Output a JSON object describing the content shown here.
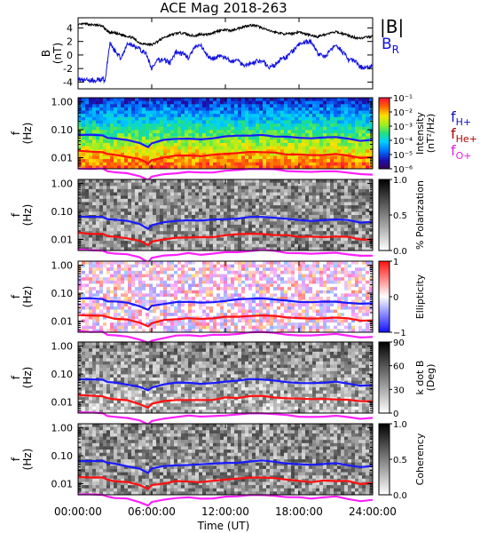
{
  "title": "ACE Mag 2018-263",
  "colors": {
    "b_total": "#000000",
    "b_r": "#1010e0",
    "f_h": "#1a1aff",
    "f_he": "#ff1010",
    "f_o": "#ff20ff",
    "label_h": "#1010c0",
    "label_he": "#b00000",
    "label_o": "#e020e0"
  },
  "x_axis": {
    "label": "Time (UT)",
    "ticks": [
      "00:00:00",
      "06:00:00",
      "12:00:00",
      "18:00:00",
      "24:00:00"
    ],
    "tick_hours": [
      0,
      6,
      12,
      18,
      24
    ],
    "range_hours": [
      0,
      24
    ]
  },
  "chart_data": [
    {
      "type": "line",
      "panel": "magnetic-field",
      "ylabel": "B",
      "yunit": "(nT)",
      "ylim": [
        -5,
        5.5
      ],
      "yticks": [
        "4",
        "2",
        "0",
        "-2",
        "-4"
      ],
      "ytick_values": [
        4,
        2,
        0,
        -2,
        -4
      ],
      "x_hours": [
        0,
        0.5,
        1,
        1.5,
        2,
        2.2,
        2.6,
        3,
        3.5,
        4,
        4.5,
        5,
        5.5,
        6,
        6.5,
        7,
        7.5,
        8,
        8.5,
        9,
        9.5,
        10,
        10.5,
        11,
        11.5,
        12,
        12.5,
        13,
        13.5,
        14,
        14.5,
        15,
        15.5,
        16,
        16.5,
        17,
        17.5,
        18,
        18.5,
        19,
        19.5,
        20,
        20.5,
        21,
        21.5,
        22,
        22.5,
        23,
        23.5,
        24
      ],
      "series": [
        {
          "name": "|B|",
          "values": [
            4.4,
            4.6,
            4.5,
            4.4,
            4.3,
            3.8,
            3.3,
            3.2,
            3.0,
            2.8,
            2.5,
            1.8,
            1.6,
            1.5,
            2.0,
            2.6,
            2.9,
            3.2,
            3.3,
            3.0,
            2.8,
            3.1,
            3.0,
            3.3,
            3.6,
            3.7,
            3.6,
            3.9,
            4.2,
            4.4,
            4.3,
            4.0,
            3.6,
            3.4,
            3.2,
            3.1,
            3.2,
            3.4,
            3.1,
            2.9,
            2.7,
            3.0,
            3.2,
            3.4,
            3.2,
            2.9,
            2.6,
            2.5,
            2.6,
            2.8
          ]
        },
        {
          "name": "BR",
          "values": [
            -3.6,
            -3.7,
            -3.8,
            -3.7,
            -3.6,
            -3.8,
            1.8,
            0.6,
            -0.5,
            1.6,
            1.5,
            0.8,
            0.3,
            -2.0,
            -0.8,
            -0.6,
            -1.2,
            0.5,
            0.2,
            -0.4,
            1.1,
            1.4,
            -0.1,
            -0.6,
            -0.1,
            -0.5,
            -0.9,
            -0.8,
            -1.5,
            -1.3,
            -1.0,
            -0.8,
            -1.8,
            -1.6,
            -0.6,
            -0.3,
            0.6,
            1.5,
            1.9,
            2.0,
            0.3,
            -0.3,
            0.4,
            1.6,
            0.6,
            -0.7,
            -0.8,
            -1.8,
            -1.9,
            -1.7
          ]
        }
      ]
    },
    {
      "type": "heatmap",
      "panel": "wave-power",
      "ylabel": "f",
      "yunit": "(Hz)",
      "yscale": "log",
      "ylim": [
        0.004,
        1.4
      ],
      "yticks": [
        "1.00",
        "0.10",
        "0.01"
      ],
      "ytick_values": [
        1.0,
        0.1,
        0.01
      ],
      "colorbar": {
        "label": "Intensity",
        "unit": "(nT²/Hz)",
        "scale": "log",
        "range": [
          1e-06,
          0.1
        ],
        "ticks": [
          "10⁻¹",
          "10⁻²",
          "10⁻³",
          "10⁻⁴",
          "10⁻⁵",
          "10⁻⁶"
        ]
      }
    },
    {
      "type": "heatmap",
      "panel": "polarization",
      "ylabel": "f",
      "yunit": "(Hz)",
      "yscale": "log",
      "ylim": [
        0.004,
        1.4
      ],
      "yticks": [
        "1.00",
        "0.10",
        "0.01"
      ],
      "ytick_values": [
        1.0,
        0.1,
        0.01
      ],
      "colorbar": {
        "label": "% Polarization",
        "unit": "",
        "range": [
          0,
          1
        ],
        "ticks": [
          "1.0",
          "0.5",
          "0.0"
        ]
      }
    },
    {
      "type": "heatmap",
      "panel": "ellipticity",
      "ylabel": "f",
      "yunit": "(Hz)",
      "yscale": "log",
      "ylim": [
        0.004,
        1.4
      ],
      "yticks": [
        "1.00",
        "0.10",
        "0.01"
      ],
      "ytick_values": [
        1.0,
        0.1,
        0.01
      ],
      "colorbar": {
        "label": "Ellipticity",
        "unit": "",
        "range": [
          -1,
          1
        ],
        "ticks": [
          "1",
          "0",
          "−1"
        ]
      }
    },
    {
      "type": "heatmap",
      "panel": "k-dot-b",
      "ylabel": "f",
      "yunit": "(Hz)",
      "yscale": "log",
      "ylim": [
        0.004,
        1.4
      ],
      "yticks": [
        "1.00",
        "0.10",
        "0.01"
      ],
      "ytick_values": [
        1.0,
        0.1,
        0.01
      ],
      "colorbar": {
        "label": "k dot B",
        "unit": "(Deg)",
        "range": [
          0,
          90
        ],
        "ticks": [
          "90",
          "60",
          "30",
          "0"
        ]
      }
    },
    {
      "type": "heatmap",
      "panel": "coherency",
      "ylabel": "f",
      "yunit": "(Hz)",
      "yscale": "log",
      "ylim": [
        0.004,
        1.4
      ],
      "yticks": [
        "1.00",
        "0.10",
        "0.01"
      ],
      "ytick_values": [
        1.0,
        0.1,
        0.01
      ],
      "colorbar": {
        "label": "Coherency",
        "unit": "",
        "range": [
          0,
          1
        ],
        "ticks": [
          "1.0",
          "0.5",
          "0.0"
        ]
      }
    }
  ],
  "gyrofrequency_lines": {
    "x_hours": [
      0,
      1,
      2,
      2.4,
      3,
      4,
      5,
      5.7,
      6,
      7,
      8,
      9,
      10,
      11,
      12,
      13,
      14,
      15,
      16,
      17,
      18,
      19,
      20,
      21,
      22,
      23,
      24
    ],
    "series": [
      {
        "name": "H+",
        "values_hz": [
          0.068,
          0.066,
          0.064,
          0.053,
          0.05,
          0.044,
          0.035,
          0.025,
          0.034,
          0.042,
          0.047,
          0.049,
          0.047,
          0.05,
          0.055,
          0.058,
          0.064,
          0.065,
          0.06,
          0.054,
          0.05,
          0.048,
          0.05,
          0.052,
          0.047,
          0.04,
          0.042
        ]
      },
      {
        "name": "He+",
        "values_hz": [
          0.017,
          0.0165,
          0.016,
          0.0133,
          0.0125,
          0.011,
          0.0088,
          0.0063,
          0.0085,
          0.0105,
          0.0118,
          0.0123,
          0.0118,
          0.0125,
          0.0138,
          0.0145,
          0.016,
          0.0163,
          0.015,
          0.0135,
          0.0125,
          0.012,
          0.0125,
          0.013,
          0.0118,
          0.01,
          0.0105
        ]
      },
      {
        "name": "O+",
        "values_hz": [
          0.0043,
          0.0041,
          0.004,
          0.0033,
          0.0031,
          0.0028,
          0.0022,
          0.0016,
          0.0021,
          0.0026,
          0.0029,
          0.0031,
          0.0029,
          0.0031,
          0.0034,
          0.0036,
          0.004,
          0.0041,
          0.0038,
          0.0034,
          0.0031,
          0.003,
          0.0031,
          0.0033,
          0.0029,
          0.0025,
          0.0026
        ]
      }
    ]
  },
  "legends": {
    "b": {
      "total": "|B|",
      "radial_main": "B",
      "radial_sub": "R"
    },
    "gyro": [
      {
        "main": "f",
        "sub": "H+"
      },
      {
        "main": "f",
        "sub": "He+"
      },
      {
        "main": "f",
        "sub": "O+"
      }
    ]
  }
}
